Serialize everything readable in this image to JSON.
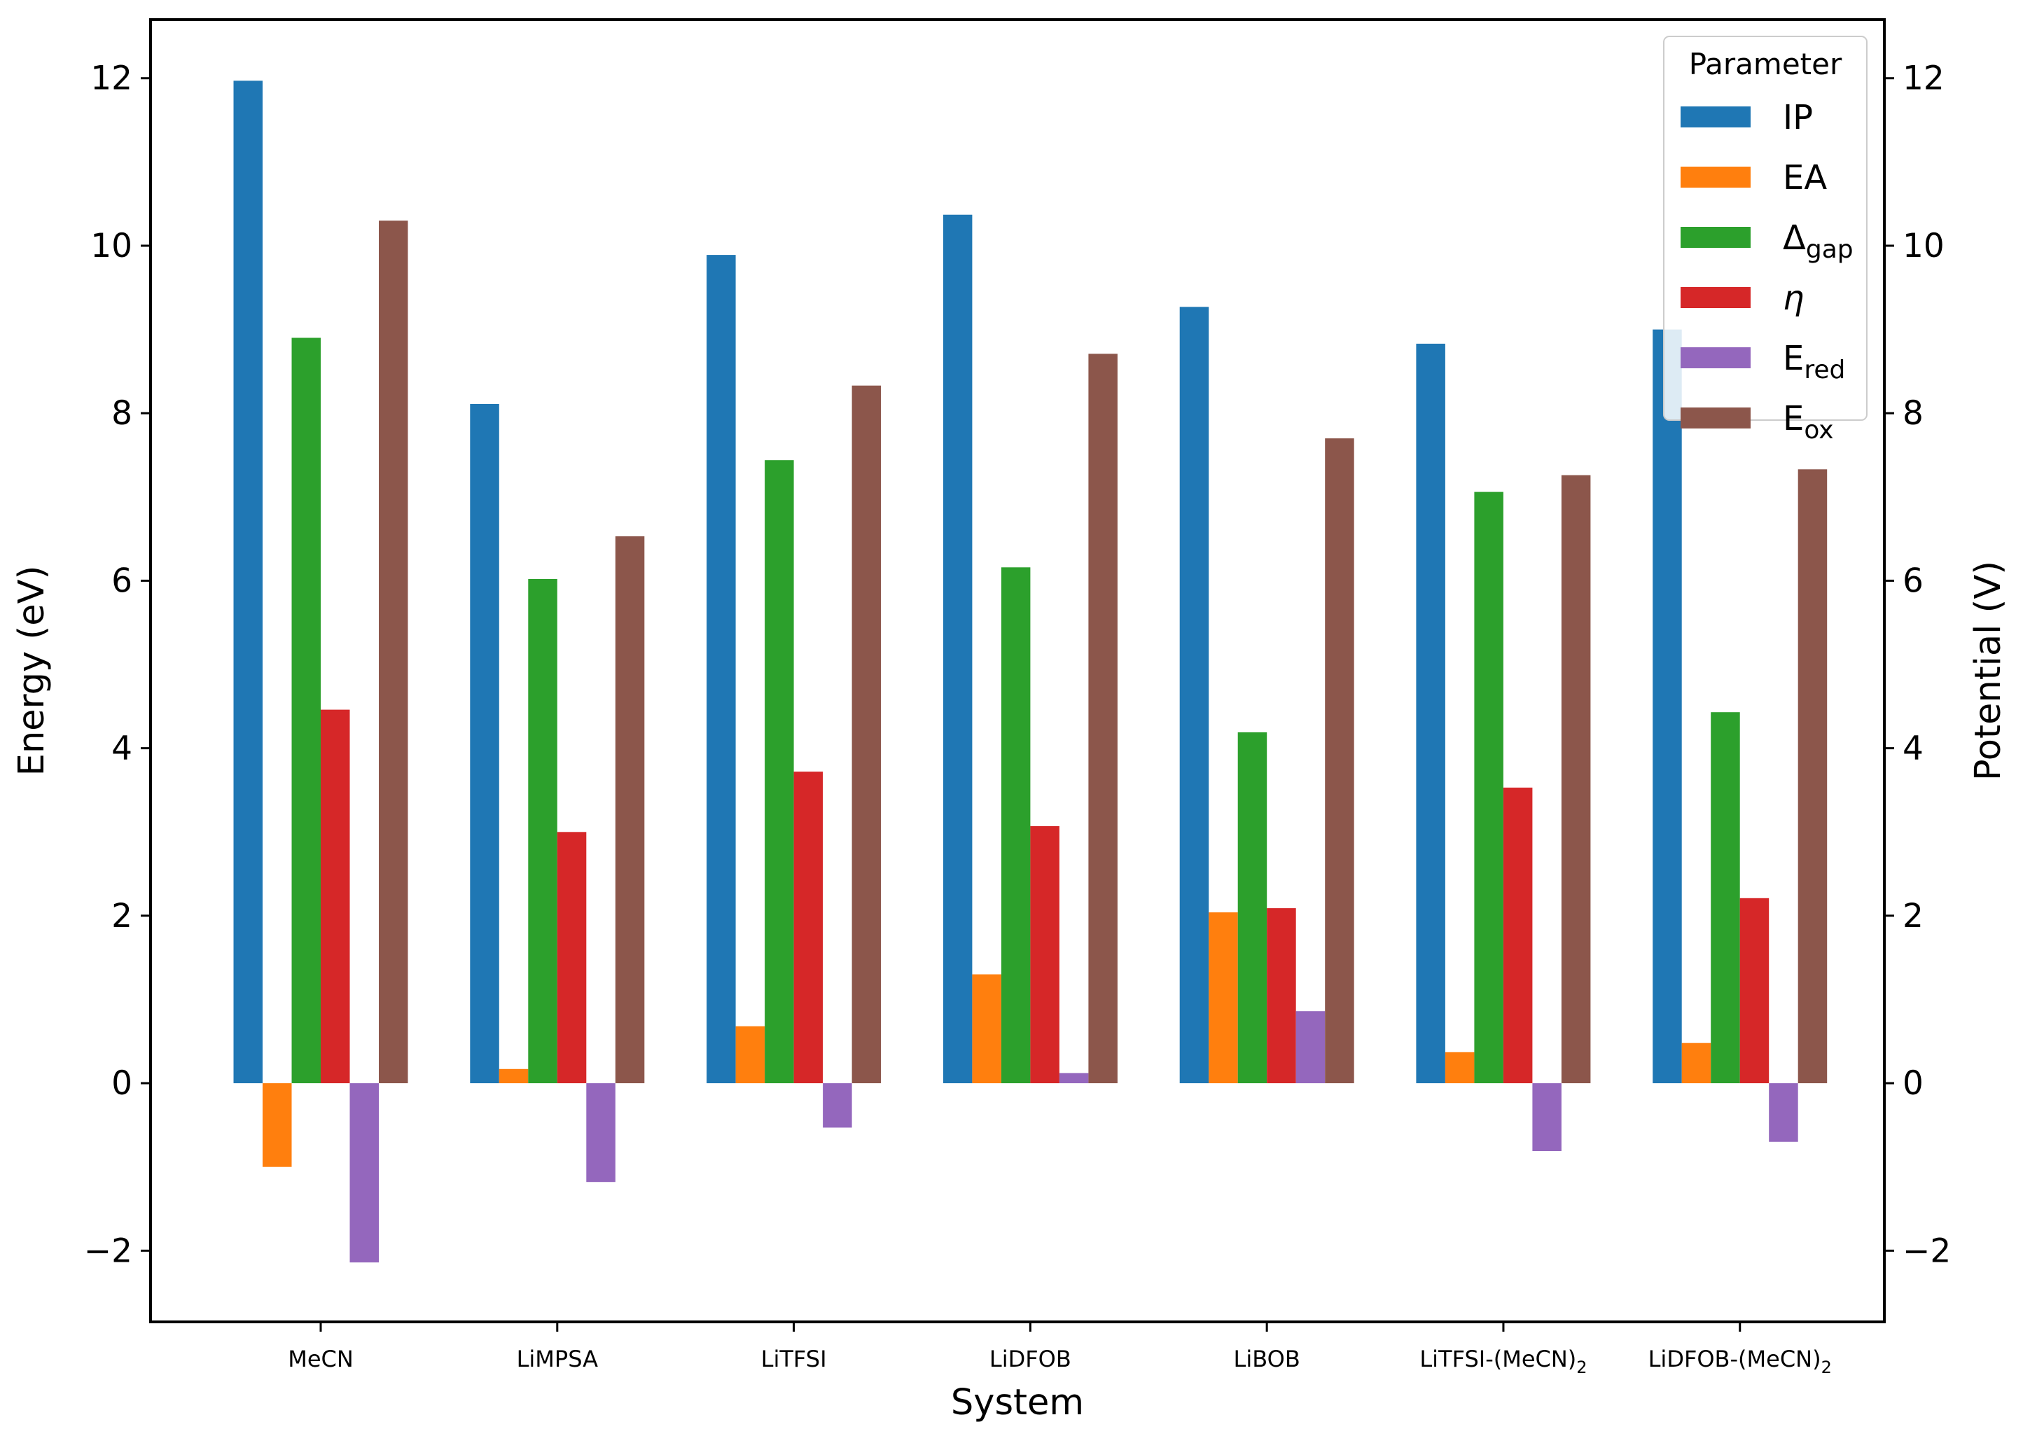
{
  "chart_data": {
    "type": "bar",
    "title": "",
    "xlabel": "System",
    "ylabel": "Energy (eV)",
    "y2label": "Potential (V)",
    "ylim": [
      -2.85,
      12.7
    ],
    "yticks": [
      -2,
      0,
      2,
      4,
      6,
      8,
      10,
      12
    ],
    "ytick_labels": [
      "−2",
      "0",
      "2",
      "4",
      "6",
      "8",
      "10",
      "12"
    ],
    "categories": [
      "MeCN",
      "LiMPSA",
      "LiTFSI",
      "LiDFOB",
      "LiBOB",
      "LiTFSI-(MeCN)2",
      "LiDFOB-(MeCN)2"
    ],
    "category_labels": [
      {
        "main": "MeCN",
        "sub": ""
      },
      {
        "main": "LiMPSA",
        "sub": ""
      },
      {
        "main": "LiTFSI",
        "sub": ""
      },
      {
        "main": "LiDFOB",
        "sub": ""
      },
      {
        "main": "LiBOB",
        "sub": ""
      },
      {
        "main": "LiTFSI-(MeCN)",
        "sub": "2"
      },
      {
        "main": "LiDFOB-(MeCN)",
        "sub": "2"
      }
    ],
    "legend": {
      "title": "Parameter",
      "position": "top-right"
    },
    "series": [
      {
        "name": "IP",
        "label_main": "IP",
        "label_sub": "",
        "italic": false,
        "color": "#1f77b4",
        "values": [
          11.97,
          8.11,
          9.89,
          10.37,
          9.27,
          8.83,
          9.0
        ]
      },
      {
        "name": "EA",
        "label_main": "EA",
        "label_sub": "",
        "italic": false,
        "color": "#ff7f0e",
        "values": [
          -1.0,
          0.17,
          0.68,
          1.3,
          2.04,
          0.37,
          0.48
        ]
      },
      {
        "name": "Δgap",
        "label_main": "Δ",
        "label_sub": "gap",
        "italic": false,
        "color": "#2ca02c",
        "values": [
          8.9,
          6.02,
          7.44,
          6.16,
          4.19,
          7.06,
          4.43
        ]
      },
      {
        "name": "η",
        "label_main": "η",
        "label_sub": "",
        "italic": true,
        "color": "#d62728",
        "values": [
          4.46,
          3.0,
          3.72,
          3.07,
          2.09,
          3.53,
          2.21
        ]
      },
      {
        "name": "Ered",
        "label_main": "E",
        "label_sub": "red",
        "italic": false,
        "color": "#9467bd",
        "values": [
          -2.14,
          -1.18,
          -0.53,
          0.12,
          0.86,
          -0.81,
          -0.7
        ]
      },
      {
        "name": "Eox",
        "label_main": "E",
        "label_sub": "ox",
        "italic": false,
        "color": "#8c564b",
        "values": [
          10.3,
          6.53,
          8.33,
          8.71,
          7.7,
          7.26,
          7.33
        ]
      }
    ]
  }
}
